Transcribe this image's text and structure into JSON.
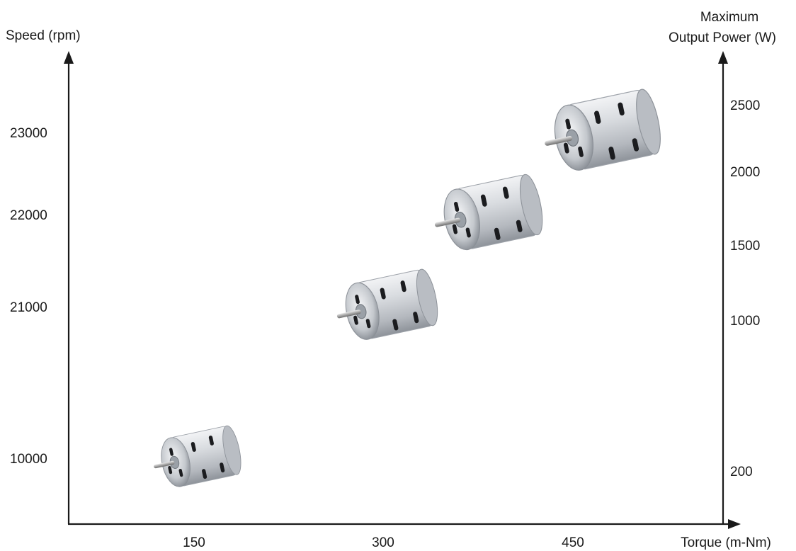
{
  "chart_data": {
    "type": "scatter",
    "xlabel": "Torque (m-Nm)",
    "ylabel_left": "Speed (rpm)",
    "ylabel_right": [
      "Maximum",
      "Output Power (W)"
    ],
    "x_ticks": [
      "150",
      "300",
      "450"
    ],
    "y_left_ticks": [
      "10000",
      "21000",
      "22000",
      "23000"
    ],
    "y_right_ticks": [
      "200",
      "1000",
      "1500",
      "2000",
      "2500"
    ],
    "grid": false,
    "marker": "motor-image",
    "points": [
      {
        "torque": 150,
        "speed": 10000,
        "power": 200
      },
      {
        "torque": 300,
        "speed": 21000,
        "power": 1000
      },
      {
        "torque": 380,
        "speed": 22000,
        "power": 1500
      },
      {
        "torque": 470,
        "speed": 23000,
        "power": 2500
      }
    ],
    "colors": {
      "axis": "#1a1a1a",
      "motor_body": "#c9ccd1",
      "motor_shadow": "#8e939a",
      "slot": "#1b1c1f"
    }
  }
}
